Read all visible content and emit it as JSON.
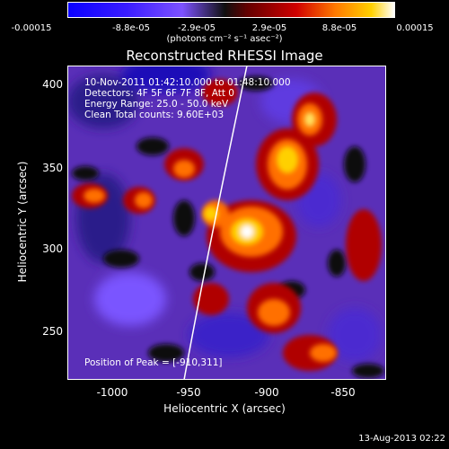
{
  "colorbar": {
    "tick_labels": [
      "-0.00015",
      "-8.8e-05",
      "-2.9e-05",
      "2.9e-05",
      "8.8e-05",
      "0.00015"
    ],
    "units_label": "(photons cm⁻² s⁻¹ asec⁻²)"
  },
  "plot": {
    "title": "Reconstructed RHESSI Image",
    "info_lines": [
      "10-Nov-2011 01:42:10.000 to 01:48:10.000",
      "Detectors: 4F 5F 6F 7F 8F, Att 0",
      "Energy Range: 25.0 - 50.0 keV",
      "Clean    Total counts: 9.60E+03"
    ],
    "peak_label": "Position of Peak = [-910,311]",
    "xlabel": "Heliocentric X (arcsec)",
    "ylabel": "Heliocentric Y (arcsec)",
    "x_ticks": [
      "-1000",
      "-950",
      "-900",
      "-850"
    ],
    "y_ticks": [
      "400",
      "350",
      "300",
      "250"
    ]
  },
  "timestamp": "13-Aug-2013 02:22"
}
